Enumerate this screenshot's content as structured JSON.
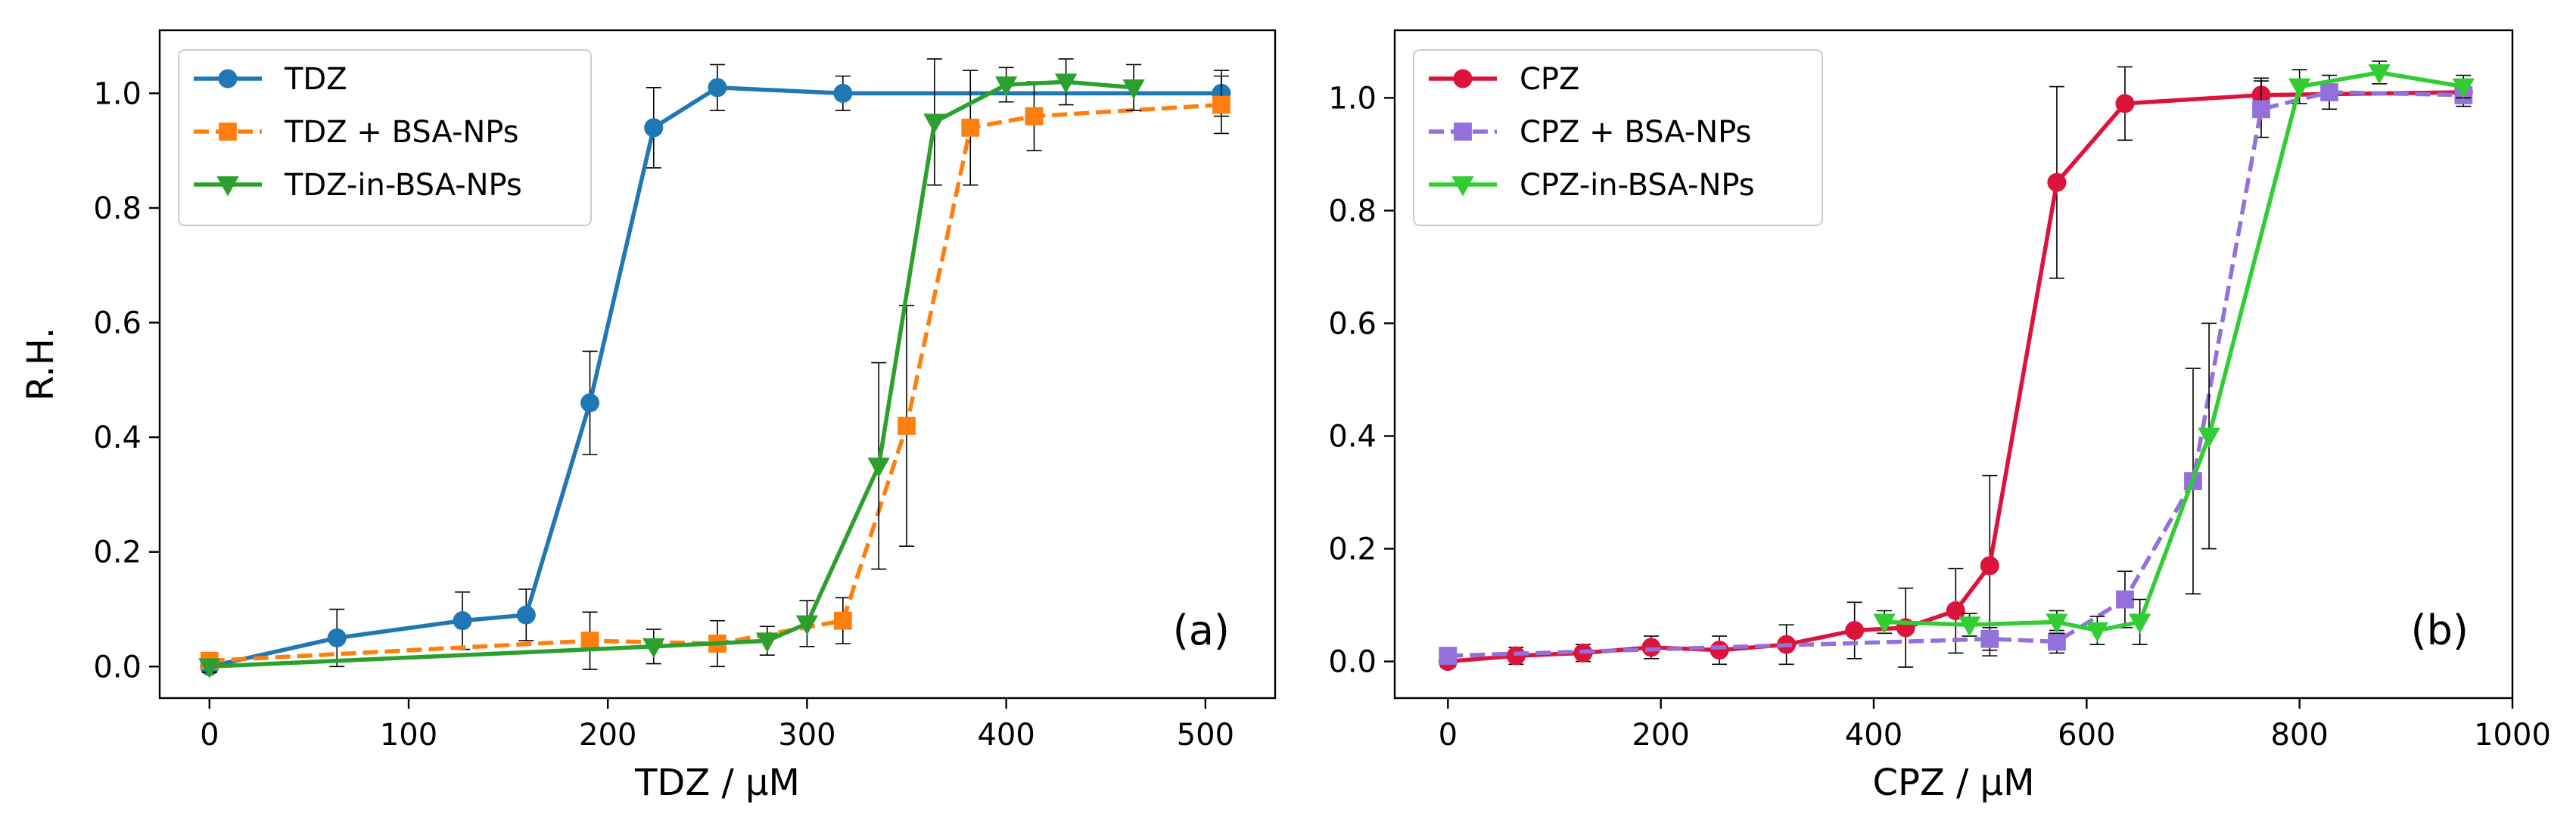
{
  "chart_data": [
    {
      "type": "line",
      "panel_label": "(a)",
      "xlabel": "TDZ / μM",
      "ylabel": "R.H.",
      "xlim": [
        -25,
        535
      ],
      "ylim": [
        -0.055,
        1.11
      ],
      "xticks": [
        0,
        100,
        200,
        300,
        400,
        500
      ],
      "yticks": [
        0.0,
        0.2,
        0.4,
        0.6,
        0.8,
        1.0
      ],
      "xtick_labels": [
        "0",
        "100",
        "200",
        "300",
        "400",
        "500"
      ],
      "ytick_labels": [
        "0.0",
        "0.2",
        "0.4",
        "0.6",
        "0.8",
        "1.0"
      ],
      "legend_position": "top-left",
      "series": [
        {
          "name": "TDZ",
          "color": "#1f77b4",
          "linestyle": "solid",
          "marker": "circle",
          "x": [
            0,
            64,
            127,
            159,
            191,
            223,
            255,
            318,
            508
          ],
          "y": [
            0.0,
            0.05,
            0.08,
            0.09,
            0.46,
            0.94,
            1.01,
            1.0,
            1.0
          ],
          "err": [
            0.01,
            0.05,
            0.05,
            0.045,
            0.09,
            0.07,
            0.04,
            0.03,
            0.04
          ]
        },
        {
          "name": "TDZ + BSA-NPs",
          "color": "#ff7f0e",
          "linestyle": "dashed",
          "marker": "square",
          "x": [
            0,
            191,
            255,
            318,
            350,
            382,
            414,
            508
          ],
          "y": [
            0.01,
            0.045,
            0.04,
            0.08,
            0.42,
            0.94,
            0.96,
            0.98
          ],
          "err": [
            0.01,
            0.05,
            0.04,
            0.04,
            0.21,
            0.1,
            0.06,
            0.05
          ]
        },
        {
          "name": "TDZ-in-BSA-NPs",
          "color": "#2ca02c",
          "linestyle": "solid",
          "marker": "triangle-down",
          "x": [
            0,
            223,
            280,
            300,
            336,
            364,
            400,
            430,
            464
          ],
          "y": [
            0.0,
            0.035,
            0.045,
            0.075,
            0.35,
            0.95,
            1.015,
            1.02,
            1.01
          ],
          "err": [
            0.01,
            0.03,
            0.025,
            0.04,
            0.18,
            0.11,
            0.03,
            0.04,
            0.04
          ]
        }
      ]
    },
    {
      "type": "line",
      "panel_label": "(b)",
      "xlabel": "CPZ / μM",
      "ylabel": "",
      "xlim": [
        -50,
        1000
      ],
      "ylim": [
        -0.065,
        1.12
      ],
      "xticks": [
        0,
        200,
        400,
        600,
        800,
        1000
      ],
      "yticks": [
        0.0,
        0.2,
        0.4,
        0.6,
        0.8,
        1.0
      ],
      "xtick_labels": [
        "0",
        "200",
        "400",
        "600",
        "800",
        "1000"
      ],
      "ytick_labels": [
        "0.0",
        "0.2",
        "0.4",
        "0.6",
        "0.8",
        "1.0"
      ],
      "legend_position": "top-left",
      "series": [
        {
          "name": "CPZ",
          "color": "#dc143c",
          "linestyle": "solid",
          "marker": "circle",
          "x": [
            0,
            64,
            127,
            191,
            255,
            318,
            382,
            430,
            477,
            509,
            572,
            636,
            764,
            954
          ],
          "y": [
            0.0,
            0.01,
            0.015,
            0.025,
            0.02,
            0.03,
            0.055,
            0.06,
            0.09,
            0.17,
            0.85,
            0.99,
            1.005,
            1.01
          ],
          "err": [
            0.01,
            0.015,
            0.015,
            0.02,
            0.025,
            0.035,
            0.05,
            0.07,
            0.075,
            0.16,
            0.17,
            0.065,
            0.03,
            0.02
          ]
        },
        {
          "name": "CPZ + BSA-NPs",
          "color": "#9370db",
          "linestyle": "dashed",
          "marker": "square",
          "x": [
            0,
            509,
            572,
            636,
            700,
            764,
            828,
            954
          ],
          "y": [
            0.01,
            0.04,
            0.035,
            0.11,
            0.32,
            0.98,
            1.01,
            1.005
          ],
          "err": [
            0.01,
            0.02,
            0.02,
            0.05,
            0.2,
            0.05,
            0.03,
            0.02
          ]
        },
        {
          "name": "CPZ-in-BSA-NPs",
          "color": "#32cd32",
          "linestyle": "solid",
          "marker": "triangle-down",
          "x": [
            410,
            490,
            572,
            610,
            650,
            715,
            800,
            875,
            954
          ],
          "y": [
            0.07,
            0.065,
            0.07,
            0.055,
            0.07,
            0.4,
            1.02,
            1.045,
            1.02
          ],
          "err": [
            0.02,
            0.02,
            0.02,
            0.025,
            0.04,
            0.2,
            0.03,
            0.02,
            0.02
          ]
        }
      ]
    }
  ]
}
